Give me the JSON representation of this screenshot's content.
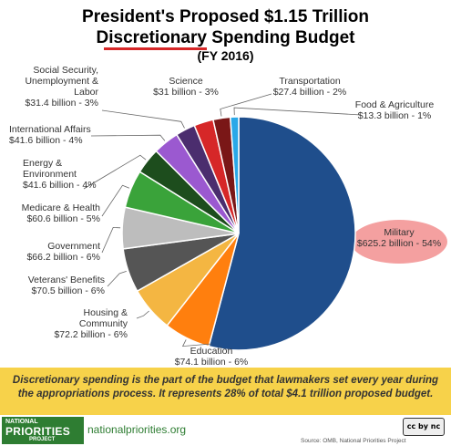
{
  "header": {
    "title_line1": "President's Proposed $1.15 Trillion",
    "title_line2_underlined": "Discretionary",
    "title_line2_rest": " Spending Budget",
    "title_line3": "(FY 2016)"
  },
  "chart_data": {
    "type": "pie",
    "unit": "billion",
    "slices": [
      {
        "name": "Military",
        "value_label": "$625.2 billion - 54%",
        "value": 625.2,
        "percent": 54,
        "color": "#1f4e8c"
      },
      {
        "name": "Education",
        "value_label": "$74.1 billion - 6%",
        "value": 74.1,
        "percent": 6,
        "color": "#ff7f0e"
      },
      {
        "name": "Housing & Community",
        "value_label": "$72.2 billion - 6%",
        "value": 72.2,
        "percent": 6,
        "color": "#f4b642"
      },
      {
        "name": "Veterans' Benefits",
        "value_label": "$70.5 billion - 6%",
        "value": 70.5,
        "percent": 6,
        "color": "#555555"
      },
      {
        "name": "Government",
        "value_label": "$66.2 billion - 6%",
        "value": 66.2,
        "percent": 6,
        "color": "#bdbdbd"
      },
      {
        "name": "Medicare & Health",
        "value_label": "$60.6 billion - 5%",
        "value": 60.6,
        "percent": 5,
        "color": "#3aa33a"
      },
      {
        "name": "Energy & Environment",
        "value_label": "$41.6 billion - 4%",
        "value": 41.6,
        "percent": 4,
        "color": "#1d4d1d"
      },
      {
        "name": "International Affairs",
        "value_label": "$41.6 billion - 4%",
        "value": 41.6,
        "percent": 4,
        "color": "#9b59d0"
      },
      {
        "name": "Social Security, Unemployment & Labor",
        "value_label": "$31.4 billion - 3%",
        "value": 31.4,
        "percent": 3,
        "color": "#4b2d6e"
      },
      {
        "name": "Science",
        "value_label": "$31 billion - 3%",
        "value": 31,
        "percent": 3,
        "color": "#d62728"
      },
      {
        "name": "Transportation",
        "value_label": "$27.4 billion - 2%",
        "value": 27.4,
        "percent": 2,
        "color": "#7a1717"
      },
      {
        "name": "Food & Agriculture",
        "value_label": "$13.3 billion - 1%",
        "value": 13.3,
        "percent": 1,
        "color": "#2aa8e8"
      }
    ],
    "highlight": {
      "slice": "Military",
      "color": "#f4a0a0"
    }
  },
  "note": {
    "line1": "Discretionary spending is the part of the budget that lawmakers set every year during",
    "line2": "the appropriations process. It represents 28% of total $4.1 trillion proposed budget."
  },
  "footer": {
    "logo_line1": "NATIONAL",
    "logo_line2": "PRIORITIES",
    "logo_line3": "PROJECT",
    "site": "nationalpriorities.org",
    "license": "cc by nc",
    "source": "Source: OMB, National Priorities Project"
  }
}
